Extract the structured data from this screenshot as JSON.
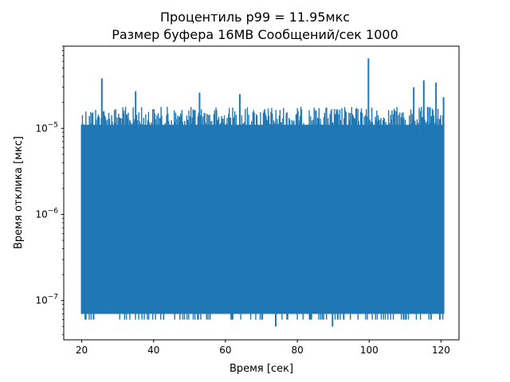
{
  "chart_data": {
    "type": "line",
    "title": "Процентиль p99 = 11.95мкс",
    "subtitle": "Размер буфера 16MB Сообщений/сек 1000",
    "xlabel": "Время [сек]",
    "ylabel": "Время отклика [мкс]",
    "xlim": [
      15,
      125
    ],
    "ylim": [
      3.5e-08,
      9e-05
    ],
    "y_scale": "log",
    "grid": false,
    "x_ticks": [
      {
        "value": 20,
        "label": "20"
      },
      {
        "value": 40,
        "label": "40"
      },
      {
        "value": 60,
        "label": "60"
      },
      {
        "value": 80,
        "label": "80"
      },
      {
        "value": 100,
        "label": "100"
      },
      {
        "value": 120,
        "label": "120"
      }
    ],
    "y_ticks": [
      {
        "value": 1e-07,
        "base": "10",
        "exponent": "−7"
      },
      {
        "value": 1e-06,
        "base": "10",
        "exponent": "−6"
      },
      {
        "value": 1e-05,
        "base": "10",
        "exponent": "−5"
      }
    ],
    "series": [
      {
        "color": "#1f77b4",
        "x_range": [
          20,
          120.7
        ],
        "baseline_min": 7e-08,
        "typical_max": 2e-05,
        "spikes": [
          {
            "x": 25.6,
            "y": 3.8e-05
          },
          {
            "x": 35.0,
            "y": 2.7e-05
          },
          {
            "x": 52.8,
            "y": 2.6e-05
          },
          {
            "x": 64.0,
            "y": 2.5e-05
          },
          {
            "x": 99.8,
            "y": 6.5e-05
          },
          {
            "x": 112.4,
            "y": 3e-05
          },
          {
            "x": 115.2,
            "y": 3.6e-05
          },
          {
            "x": 118.6,
            "y": 3.4e-05
          }
        ],
        "dips": [
          {
            "x": 74.0,
            "y": 5e-08
          },
          {
            "x": 89.8,
            "y": 5e-08
          },
          {
            "x": 23.3,
            "y": 6e-08
          },
          {
            "x": 52.4,
            "y": 6e-08
          },
          {
            "x": 110.2,
            "y": 6e-08
          }
        ]
      }
    ]
  }
}
